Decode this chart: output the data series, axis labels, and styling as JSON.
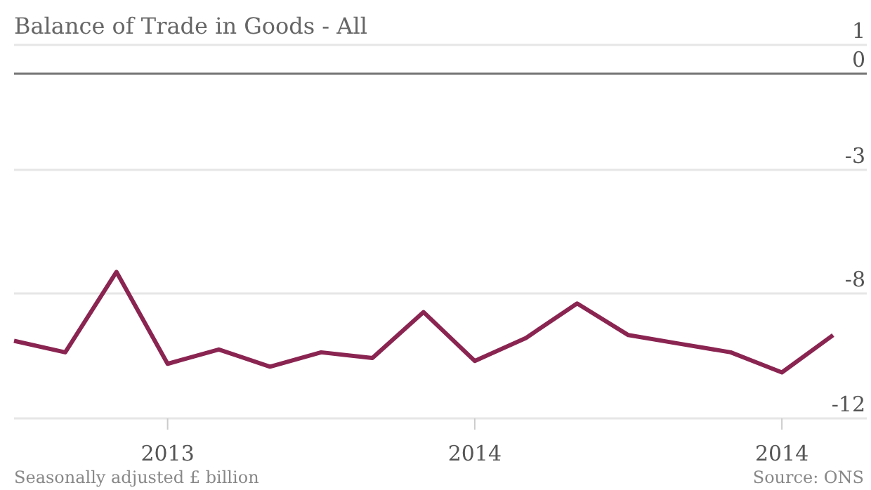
{
  "chart_data": {
    "type": "line",
    "title": "Balance of Trade in Goods - All",
    "categories": [
      null,
      null,
      null,
      "2013",
      null,
      null,
      null,
      null,
      null,
      "2014",
      null,
      null,
      null,
      null,
      null,
      "2014",
      null
    ],
    "series": [
      {
        "color": "#8a2451",
        "values": [
          -9.3,
          -9.7,
          -6.9,
          -10.1,
          -9.6,
          -10.2,
          -9.7,
          -9.9,
          -8.3,
          -10.0,
          -9.2,
          -8.0,
          -9.1,
          -9.4,
          -9.7,
          -10.4,
          -9.1
        ]
      }
    ],
    "ylim": [
      -12,
      1
    ],
    "yticks": [
      1,
      0,
      {
        "value": -3.35,
        "label": "-3"
      },
      {
        "value": -7.65,
        "label": "-8"
      },
      -12
    ],
    "ref_lines": [
      {
        "axis": "y",
        "value": 0,
        "color": "#777777"
      }
    ],
    "grid": "y",
    "marker": "none",
    "line_style": "solid",
    "annotations": [
      "Seasonally adjusted £ billion",
      "Source: ONS"
    ]
  }
}
